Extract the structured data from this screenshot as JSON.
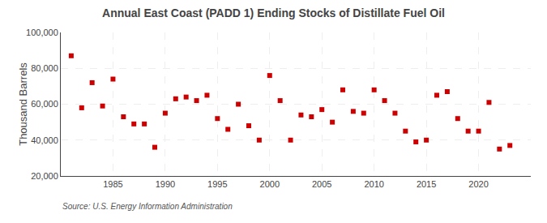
{
  "chart_data": {
    "type": "scatter",
    "title": "Annual East Coast (PADD 1) Ending Stocks of Distillate Fuel Oil",
    "ylabel": "Thousand Barrels",
    "source": "Source: U.S. Energy Information Administration",
    "color": "#cc0000",
    "marker": "square",
    "x": [
      1981,
      1982,
      1983,
      1984,
      1985,
      1986,
      1987,
      1988,
      1989,
      1990,
      1991,
      1992,
      1993,
      1994,
      1995,
      1996,
      1997,
      1998,
      1999,
      2000,
      2001,
      2002,
      2003,
      2004,
      2005,
      2006,
      2007,
      2008,
      2009,
      2010,
      2011,
      2012,
      2013,
      2014,
      2015,
      2016,
      2017,
      2018,
      2019,
      2020,
      2021,
      2022,
      2023
    ],
    "values": [
      87000,
      58000,
      72000,
      59000,
      74000,
      53000,
      49000,
      49000,
      36000,
      55000,
      63000,
      64000,
      62000,
      65000,
      52000,
      46000,
      60000,
      48000,
      40000,
      76000,
      62000,
      40000,
      54000,
      53000,
      57000,
      50000,
      68000,
      56000,
      55000,
      68000,
      62000,
      55000,
      45000,
      39000,
      40000,
      65000,
      67000,
      52000,
      45000,
      45000,
      61000,
      35000,
      37000
    ],
    "xlim": [
      1980,
      2025
    ],
    "xticks": [
      1985,
      1990,
      1995,
      2000,
      2005,
      2010,
      2015,
      2020
    ],
    "ylim": [
      20000,
      100000
    ],
    "yticks": [
      {
        "value": 20000,
        "label": "20,000"
      },
      {
        "value": 40000,
        "label": "40,000"
      },
      {
        "value": 60000,
        "label": "60,000"
      },
      {
        "value": 80000,
        "label": "80,000"
      },
      {
        "value": 100000,
        "label": "100,000"
      }
    ],
    "grid": true
  }
}
